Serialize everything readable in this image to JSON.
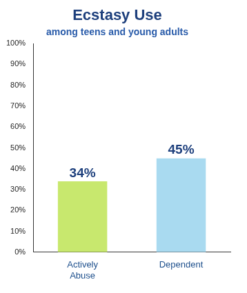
{
  "chart_data": {
    "type": "bar",
    "title": "Ecstasy Use",
    "subtitle": "among teens and young adults",
    "categories": [
      "Actively Abuse",
      "Dependent"
    ],
    "values": [
      34,
      45
    ],
    "value_labels": [
      "34%",
      "45%"
    ],
    "colors": [
      "#c8e86e",
      "#a9daf0"
    ],
    "ylim": [
      0,
      100
    ],
    "yticks": [
      {
        "value": 0,
        "label": "0%"
      },
      {
        "value": 10,
        "label": "10%"
      },
      {
        "value": 20,
        "label": "20%"
      },
      {
        "value": 30,
        "label": "30%"
      },
      {
        "value": 40,
        "label": "40%"
      },
      {
        "value": 50,
        "label": "50%"
      },
      {
        "value": 60,
        "label": "60%"
      },
      {
        "value": 70,
        "label": "70%"
      },
      {
        "value": 80,
        "label": "80%"
      },
      {
        "value": 90,
        "label": "90%"
      },
      {
        "value": 100,
        "label": "100%"
      }
    ],
    "grid": false,
    "data_labels": true
  }
}
